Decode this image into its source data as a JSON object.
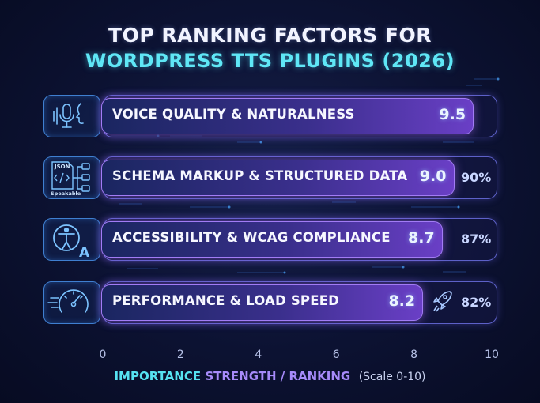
{
  "title_line1": "TOP RANKING FACTORS FOR",
  "title_line2": "WORDPRESS TTS PLUGINS (2026)",
  "chart_data": {
    "type": "bar",
    "orientation": "horizontal",
    "categories": [
      "VOICE QUALITY & NATURALNESS",
      "SCHEMA MARKUP & STRUCTURED DATA",
      "ACCESSIBILITY & WCAG COMPLIANCE",
      "PERFORMANCE & LOAD SPEED"
    ],
    "values": [
      9.5,
      9.0,
      8.7,
      8.2
    ],
    "value_labels": [
      "9.5",
      "9.0",
      "8.7",
      "8.2"
    ],
    "percent_labels": [
      "",
      "90%",
      "87%",
      "82%"
    ],
    "xlim": [
      0,
      10
    ],
    "xticks": [
      "0",
      "2",
      "4",
      "6",
      "8",
      "10"
    ],
    "xlabel_part1": "IMPORTANCE ",
    "xlabel_part2": "STRENGTH / RANKING",
    "xlabel_part3": "(Scale 0-10)",
    "grid": false
  },
  "icons": [
    "microphone-voice-icon",
    "json-schema-icon",
    "accessibility-icon",
    "speedometer-icon",
    "rocket-icon"
  ],
  "colors": {
    "accent_cyan": "#5fe7f6",
    "accent_purple": "#a78bfa",
    "background": "#0c1232"
  }
}
